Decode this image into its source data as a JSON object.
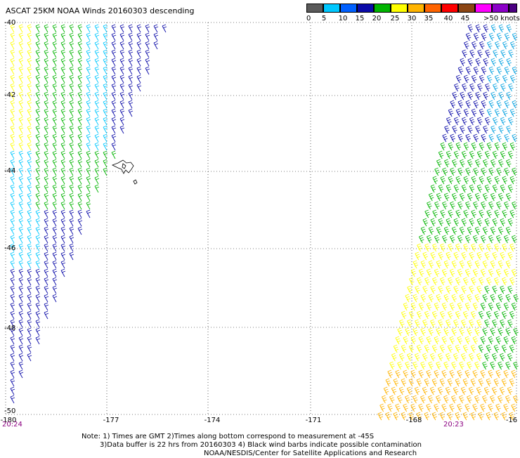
{
  "title": "ASCAT 25KM NOAA Winds 20160303 descending",
  "legend": {
    "colors": [
      "#5a5a5a",
      "#00c8ff",
      "#0060ff",
      "#0a0aa8",
      "#00b400",
      "#ffff00",
      "#ffb400",
      "#ff6400",
      "#ff0000",
      "#8b4513",
      "#ff00ff",
      "#8b00c8",
      "#4b0082"
    ],
    "labels": [
      "0",
      "5",
      "10",
      "15",
      "20",
      "25",
      "30",
      "35",
      "40",
      "45",
      ">50 knots"
    ]
  },
  "axes": {
    "lon_labels": [
      "-180",
      "-177",
      "-174",
      "-171",
      "-168",
      "-16"
    ],
    "lat_labels": [
      "-40",
      "-42",
      "-44",
      "-46",
      "-48",
      "-50"
    ]
  },
  "times": {
    "left": "20:24",
    "right": "20:23"
  },
  "notes": [
    "Note: 1) Times are GMT 2)Times along bottom correspond to measurement at -45S",
    "3)Data buffer is 22 hrs from 20160303 4) Black wind barbs indicate possible contamination",
    "NOAA/NESDIS/Center for Satellite Applications and Research"
  ],
  "swaths": {
    "west": {
      "color_bands": [
        "#ffff00",
        "#00b400",
        "#00c8ff",
        "#0a0aa8"
      ]
    },
    "east": {
      "color_bands": [
        "#0a0aa8",
        "#00b400",
        "#ffff00",
        "#ffb400"
      ]
    }
  }
}
